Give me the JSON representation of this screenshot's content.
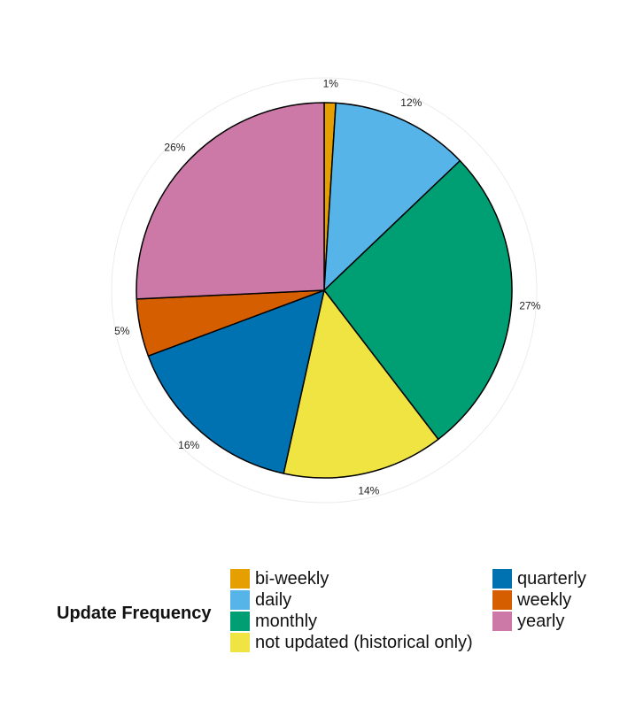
{
  "chart_data": {
    "type": "pie",
    "legend_title": "Update Frequency",
    "legend_position": "bottom",
    "slices": [
      {
        "label": "bi-weekly",
        "value": 1,
        "pct_label": "1%",
        "color": "#E69F00"
      },
      {
        "label": "daily",
        "value": 12,
        "pct_label": "12%",
        "color": "#56B4E9"
      },
      {
        "label": "monthly",
        "value": 27,
        "pct_label": "27%",
        "color": "#009E73"
      },
      {
        "label": "not updated (historical only)",
        "value": 14,
        "pct_label": "14%",
        "color": "#F0E442"
      },
      {
        "label": "quarterly",
        "value": 16,
        "pct_label": "16%",
        "color": "#0072B2"
      },
      {
        "label": "weekly",
        "value": 5,
        "pct_label": "5%",
        "color": "#D55E00"
      },
      {
        "label": "yearly",
        "value": 26,
        "pct_label": "26%",
        "color": "#CC79A7"
      }
    ]
  }
}
